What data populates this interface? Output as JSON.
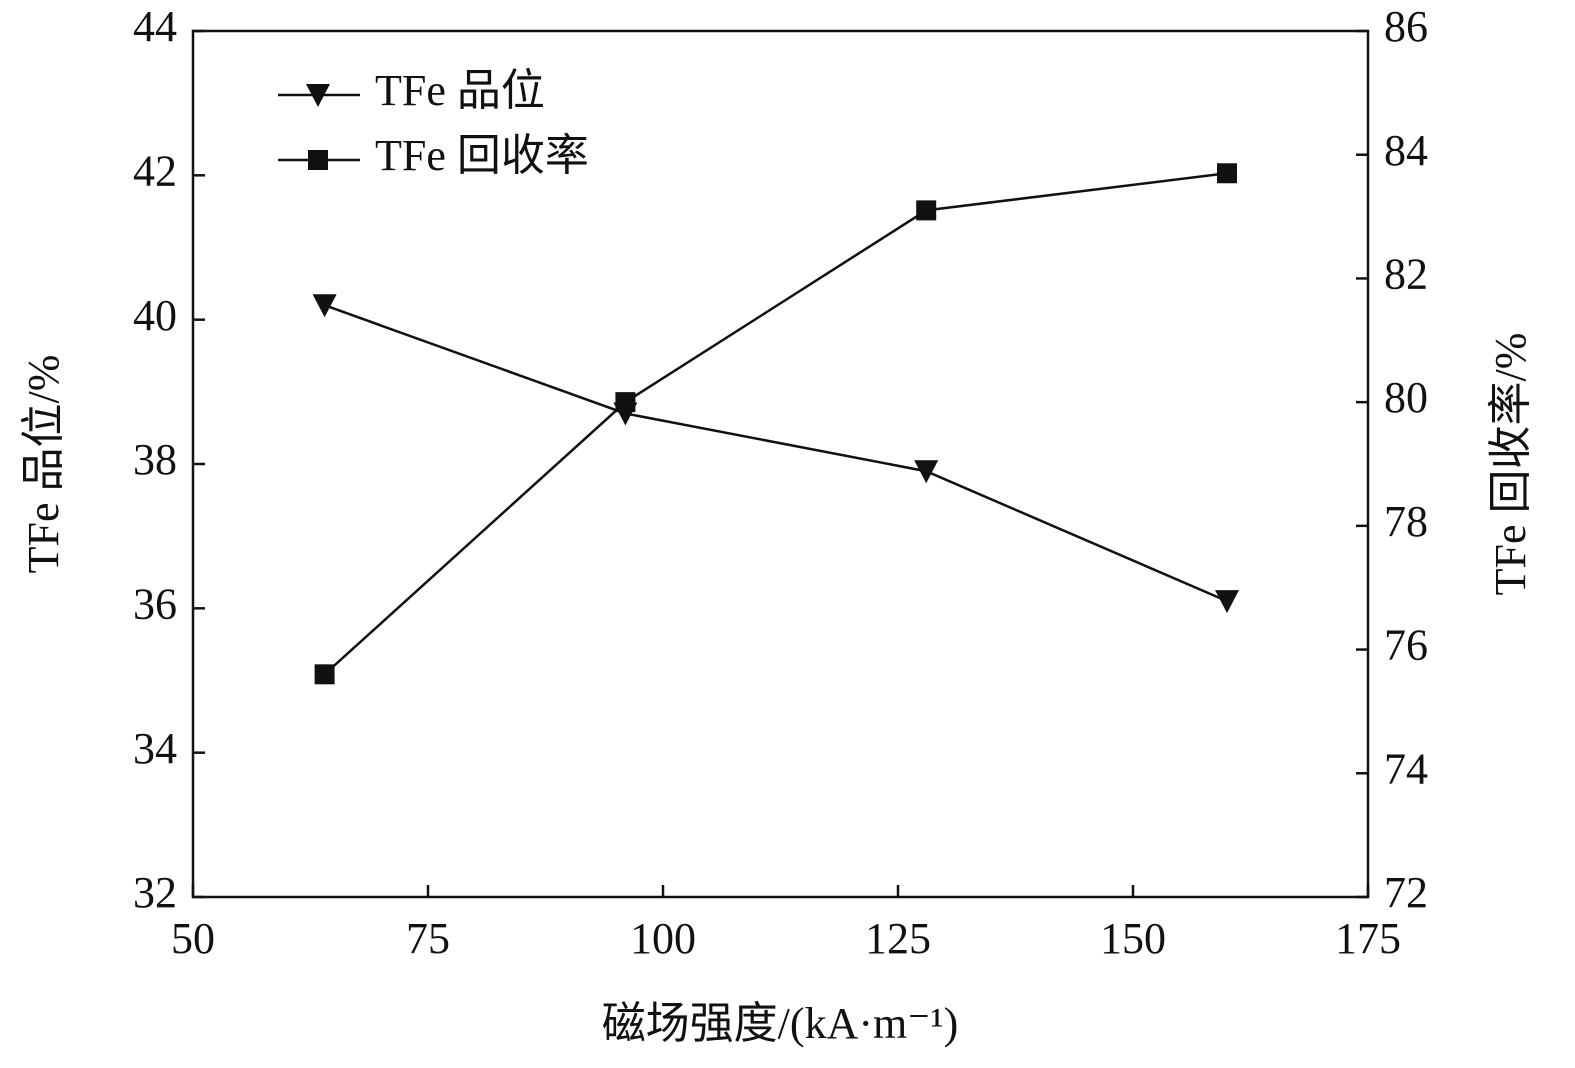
{
  "chart_data": {
    "type": "line",
    "x_label": "磁场强度/(kA·m⁻¹)",
    "y_label": "TFe 品位/%",
    "y2_label": "TFe 回收率/%",
    "x": [
      64,
      96,
      128,
      160
    ],
    "xlim": [
      50,
      175
    ],
    "xticks": [
      50,
      75,
      100,
      125,
      150,
      175
    ],
    "ylim": [
      32,
      44
    ],
    "yticks": [
      32,
      34,
      36,
      38,
      40,
      42,
      44
    ],
    "y2lim": [
      72,
      86
    ],
    "y2ticks": [
      72,
      74,
      76,
      78,
      80,
      82,
      84,
      86
    ],
    "legend": "upper-left",
    "series": [
      {
        "name": "TFe 品位",
        "color": "#111111",
        "marker": "triangle-down",
        "values": [
          40.2,
          38.7,
          37.9,
          36.1
        ]
      },
      {
        "name": "TFe 回收率",
        "color": "#111111",
        "marker": "square",
        "axis": "y2",
        "values": [
          75.6,
          80.0,
          83.1,
          83.7
        ]
      }
    ]
  }
}
